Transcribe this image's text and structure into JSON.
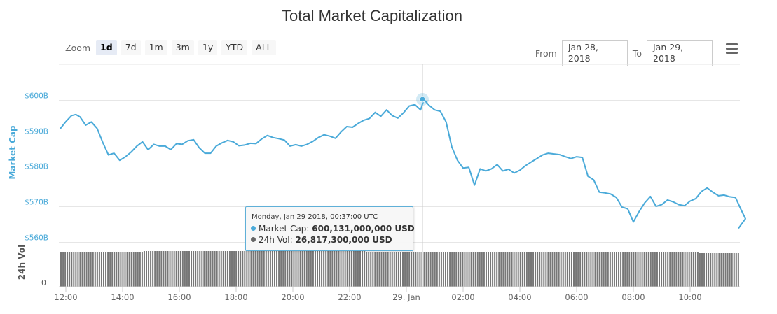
{
  "header": {
    "title": "Total Market Capitalization"
  },
  "toolbar": {
    "zoom_label": "Zoom",
    "zoom_buttons": [
      {
        "label": "1d",
        "active": true
      },
      {
        "label": "7d",
        "active": false
      },
      {
        "label": "1m",
        "active": false
      },
      {
        "label": "3m",
        "active": false
      },
      {
        "label": "1y",
        "active": false
      },
      {
        "label": "YTD",
        "active": false
      },
      {
        "label": "ALL",
        "active": false
      }
    ],
    "from_label": "From",
    "from_value": "Jan 28, 2018",
    "to_label": "To",
    "to_value": "Jan 29, 2018",
    "menu_icon": "hamburger-menu-icon"
  },
  "tooltip": {
    "date": "Monday, Jan 29 2018, 00:37:00 UTC",
    "market_cap_label": "Market Cap:",
    "market_cap_value": "600,131,000,000 USD",
    "volume_label": "24h Vol:",
    "volume_value": "26,817,300,000 USD"
  },
  "colors": {
    "market_cap_line": "#4aaad9",
    "volume_bars": "#777777",
    "axis_label": "#4aaad9",
    "grid": "#e6e6e6"
  },
  "chart_data": {
    "type": "line",
    "title": "Total Market Capitalization",
    "xlabel": "",
    "ylabel": "Market Cap",
    "secondary_ylabel": "24h Vol",
    "x_tick_labels": [
      "12:00",
      "14:00",
      "16:00",
      "18:00",
      "20:00",
      "22:00",
      "29. Jan",
      "02:00",
      "04:00",
      "06:00",
      "08:00",
      "10:00"
    ],
    "y_tick_labels": [
      "$560B",
      "$570B",
      "$580B",
      "$590B",
      "$600B"
    ],
    "secondary_y_tick_labels": [
      "0"
    ],
    "ylim": [
      560,
      609
    ],
    "grid": true,
    "legend": null,
    "series": [
      {
        "name": "Market Cap ($B)",
        "x_hours_from_12": [
          -0.2,
          0.0,
          0.2,
          0.35,
          0.5,
          0.7,
          0.9,
          1.1,
          1.3,
          1.5,
          1.7,
          1.9,
          2.1,
          2.3,
          2.5,
          2.7,
          2.9,
          3.1,
          3.3,
          3.5,
          3.7,
          3.9,
          4.1,
          4.3,
          4.5,
          4.7,
          4.9,
          5.1,
          5.3,
          5.5,
          5.7,
          5.9,
          6.1,
          6.3,
          6.5,
          6.7,
          6.9,
          7.1,
          7.3,
          7.5,
          7.7,
          7.9,
          8.1,
          8.3,
          8.5,
          8.7,
          8.9,
          9.1,
          9.3,
          9.5,
          9.7,
          9.9,
          10.1,
          10.3,
          10.5,
          10.7,
          10.9,
          11.1,
          11.3,
          11.5,
          11.7,
          11.9,
          12.1,
          12.3,
          12.5,
          12.62,
          12.8,
          13.0,
          13.2,
          13.4,
          13.6,
          13.8,
          14.0,
          14.2,
          14.4,
          14.6,
          14.8,
          15.0,
          15.2,
          15.4,
          15.6,
          15.8,
          16.0,
          16.2,
          16.4,
          16.6,
          16.8,
          17.0,
          17.2,
          17.4,
          17.6,
          17.8,
          18.0,
          18.2,
          18.4,
          18.6,
          18.8,
          19.0,
          19.2,
          19.4,
          19.6,
          19.8,
          20.0,
          20.2,
          20.4,
          20.6,
          20.8,
          21.0,
          21.2,
          21.4,
          21.6,
          21.8,
          22.0,
          22.2,
          22.4,
          22.6,
          22.8,
          23.0,
          23.2,
          23.4,
          23.6,
          23.8
        ],
        "values": [
          591.9,
          593.9,
          595.6,
          595.9,
          595.2,
          592.9,
          593.8,
          592.0,
          588.0,
          584.5,
          585.0,
          583.0,
          584.0,
          585.3,
          587.0,
          588.2,
          586.0,
          587.5,
          587.0,
          587.0,
          586.0,
          587.7,
          587.5,
          588.5,
          588.8,
          586.5,
          585.0,
          585.0,
          587.0,
          587.9,
          588.6,
          588.2,
          587.1,
          587.3,
          587.8,
          587.7,
          589.0,
          590.0,
          589.4,
          589.1,
          588.7,
          587.0,
          587.4,
          587.0,
          587.5,
          588.3,
          589.4,
          590.2,
          589.8,
          589.2,
          591.0,
          592.5,
          592.3,
          593.4,
          594.3,
          594.8,
          596.5,
          595.4,
          597.2,
          595.6,
          594.9,
          596.4,
          598.3,
          598.7,
          597.2,
          600.13,
          598.5,
          597.2,
          596.8,
          593.8,
          586.8,
          583.0,
          580.8,
          581.0,
          576.0,
          580.6,
          580.0,
          580.6,
          581.8,
          580.0,
          580.5,
          579.4,
          580.2,
          581.5,
          582.5,
          583.5,
          584.5,
          585.0,
          584.8,
          584.6,
          584.0,
          583.5,
          584.0,
          583.8,
          578.5,
          577.5,
          574.0,
          573.8,
          573.5,
          572.5,
          569.8,
          569.3,
          565.6,
          568.5,
          571.0,
          572.8,
          570.0,
          570.5,
          571.8,
          571.3,
          570.5,
          570.2,
          571.5,
          572.2,
          574.2,
          575.2,
          574.0,
          573.0,
          573.2,
          572.7,
          572.5,
          569.0
        ]
      },
      {
        "name": "24h Vol",
        "approx_bar_height_fraction": 0.85,
        "note_values": "nearly constant ~26.8B USD"
      }
    ],
    "highlighted_point": {
      "time": "Jan 29 2018 00:37 UTC",
      "market_cap": 600131000000,
      "volume_24h": 26817300000
    }
  }
}
